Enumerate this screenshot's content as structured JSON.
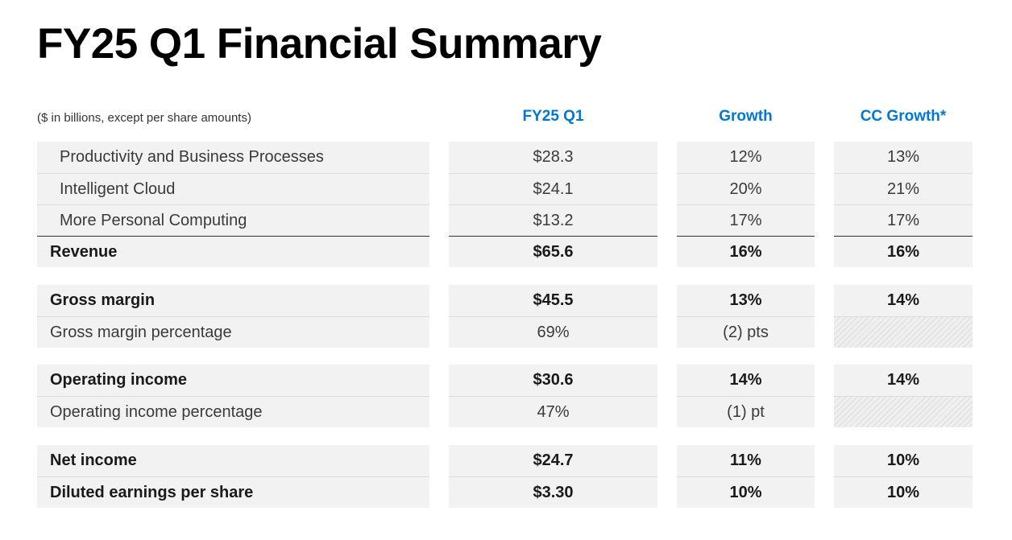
{
  "title": "FY25 Q1 Financial Summary",
  "note": "($ in billions, except per share amounts)",
  "columns": {
    "c1": "FY25 Q1",
    "c2": "Growth",
    "c3": "CC Growth*"
  },
  "accent_color": "#0078d4",
  "segments": [
    {
      "label": "Productivity and Business Processes",
      "value": "$28.3",
      "growth": "12%",
      "cc": "13%"
    },
    {
      "label": "Intelligent Cloud",
      "value": "$24.1",
      "growth": "20%",
      "cc": "21%"
    },
    {
      "label": "More Personal Computing",
      "value": "$13.2",
      "growth": "17%",
      "cc": "17%"
    }
  ],
  "revenue": {
    "label": "Revenue",
    "value": "$65.6",
    "growth": "16%",
    "cc": "16%"
  },
  "gross_margin": {
    "label": "Gross margin",
    "value": "$45.5",
    "growth": "13%",
    "cc": "14%"
  },
  "gross_margin_pct": {
    "label": "Gross margin percentage",
    "value": "69%",
    "growth": "(2) pts"
  },
  "operating_income": {
    "label": "Operating income",
    "value": "$30.6",
    "growth": "14%",
    "cc": "14%"
  },
  "operating_income_pct": {
    "label": "Operating income percentage",
    "value": "47%",
    "growth": "(1) pt"
  },
  "net_income": {
    "label": "Net income",
    "value": "$24.7",
    "growth": "11%",
    "cc": "10%"
  },
  "diluted_eps": {
    "label": "Diluted earnings per share",
    "value": "$3.30",
    "growth": "10%",
    "cc": "10%"
  }
}
